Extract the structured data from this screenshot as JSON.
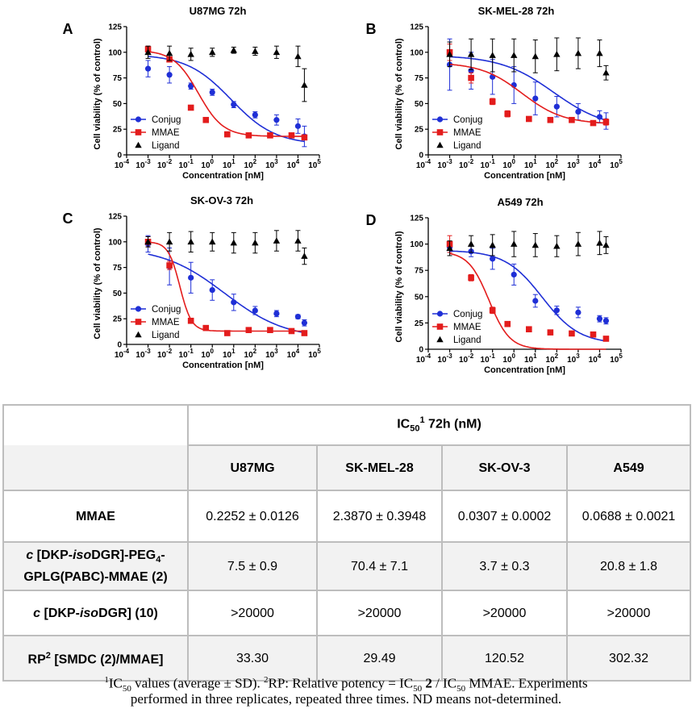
{
  "chart_data": [
    {
      "type": "scatter",
      "panel": "A",
      "title": "U87MG 72h",
      "xlabel": "Concentration [nM]",
      "ylabel": "Cell viability (% of control)",
      "xscale": "log10",
      "xlim": [
        -4,
        5
      ],
      "ylim": [
        0,
        125
      ],
      "xticks": [
        "10",
        "-4",
        "10",
        "-3",
        "10",
        "-2",
        "10",
        "-1",
        "10",
        "0",
        "10",
        "1",
        "10",
        "2",
        "10",
        "3",
        "10",
        "4",
        "10",
        "5"
      ],
      "yticks": [
        "0",
        "25",
        "50",
        "75",
        "100",
        "125"
      ],
      "legend": [
        "Conjug",
        "MMAE",
        "Ligand"
      ],
      "series": [
        {
          "name": "Conjug",
          "color": "#1f2fd6",
          "marker": "circle",
          "log_x": [
            -3,
            -2,
            -1,
            0,
            1,
            2,
            3,
            4,
            4.3
          ],
          "y": [
            84,
            78,
            67,
            61,
            49,
            39,
            34,
            28,
            18
          ],
          "err": [
            8,
            8,
            3,
            3,
            3,
            3,
            5,
            7,
            10
          ],
          "fit_ic50_log": 0.875,
          "fit_bottom": 10,
          "fit_top": 98,
          "fit_hill": 0.42
        },
        {
          "name": "MMAE",
          "color": "#e31c1c",
          "marker": "square",
          "log_x": [
            -3,
            -2,
            -1,
            -0.3,
            0.7,
            1.7,
            2.7,
            3.7,
            4.3
          ],
          "y": [
            103,
            93,
            46,
            34,
            20,
            19,
            19,
            19,
            17
          ],
          "err": [
            3,
            2,
            1,
            2,
            1,
            1,
            1,
            1,
            1
          ],
          "fit_ic50_log": -0.648,
          "fit_bottom": 18,
          "fit_top": 102,
          "fit_hill": 0.75
        },
        {
          "name": "Ligand",
          "color": "#000000",
          "marker": "triangle",
          "log_x": [
            -3,
            -2,
            -1,
            0,
            1,
            2,
            3,
            4,
            4.3
          ],
          "y": [
            100,
            99,
            98,
            100,
            102,
            101,
            100,
            96,
            68
          ],
          "err": [
            6,
            7,
            6,
            4,
            3,
            4,
            6,
            10,
            16
          ]
        }
      ]
    },
    {
      "type": "scatter",
      "panel": "B",
      "title": "SK-MEL-28 72h",
      "xlabel": "Concentration [nM]",
      "ylabel": "Cell viability (% of control)",
      "xscale": "log10",
      "xlim": [
        -4,
        5
      ],
      "ylim": [
        0,
        125
      ],
      "xticks": [
        "10",
        "-4",
        "10",
        "-3",
        "10",
        "-2",
        "10",
        "-1",
        "10",
        "0",
        "10",
        "1",
        "10",
        "2",
        "10",
        "3",
        "10",
        "4",
        "10",
        "5"
      ],
      "yticks": [
        "0",
        "25",
        "50",
        "75",
        "100",
        "125"
      ],
      "legend": [
        "Conjug",
        "MMAE",
        "Ligand"
      ],
      "series": [
        {
          "name": "Conjug",
          "color": "#1f2fd6",
          "marker": "circle",
          "log_x": [
            -3,
            -2,
            -1,
            0,
            1,
            2,
            3,
            4,
            4.3
          ],
          "y": [
            88,
            82,
            76,
            68,
            55,
            47,
            42,
            37,
            33
          ],
          "err": [
            25,
            18,
            17,
            18,
            16,
            10,
            8,
            6,
            8
          ],
          "fit_ic50_log": 1.85,
          "fit_bottom": 25,
          "fit_top": 97,
          "fit_hill": 0.35
        },
        {
          "name": "MMAE",
          "color": "#e31c1c",
          "marker": "square",
          "log_x": [
            -3,
            -2,
            -1,
            -0.3,
            0.7,
            1.7,
            2.7,
            3.7,
            4.3
          ],
          "y": [
            100,
            75,
            52,
            40,
            35,
            34,
            34,
            31,
            32
          ],
          "err": [
            8,
            5,
            3,
            3,
            2,
            2,
            2,
            2,
            3
          ],
          "fit_ic50_log": 0.378,
          "fit_bottom": 30,
          "fit_top": 90,
          "fit_hill": 0.45
        },
        {
          "name": "Ligand",
          "color": "#000000",
          "marker": "triangle",
          "log_x": [
            -3,
            -2,
            -1,
            0,
            1,
            2,
            3,
            4,
            4.3
          ],
          "y": [
            98,
            98,
            97,
            97,
            96,
            98,
            99,
            99,
            80
          ],
          "err": [
            12,
            15,
            16,
            16,
            16,
            16,
            15,
            13,
            7
          ]
        }
      ]
    },
    {
      "type": "scatter",
      "panel": "C",
      "title": "SK-OV-3 72h",
      "xlabel": "Concentration [nM]",
      "ylabel": "Cell viability (% of control)",
      "xscale": "log10",
      "xlim": [
        -4,
        5
      ],
      "ylim": [
        0,
        125
      ],
      "xticks": [
        "10",
        "-4",
        "10",
        "-3",
        "10",
        "-2",
        "10",
        "-1",
        "10",
        "0",
        "10",
        "1",
        "10",
        "2",
        "10",
        "3",
        "10",
        "4",
        "10",
        "5"
      ],
      "yticks": [
        "0",
        "25",
        "50",
        "75",
        "100",
        "125"
      ],
      "legend": [
        "Conjug",
        "MMAE",
        "Ligand"
      ],
      "series": [
        {
          "name": "Conjug",
          "color": "#1f2fd6",
          "marker": "circle",
          "log_x": [
            -3,
            -2,
            -1,
            0,
            1,
            2,
            3,
            4,
            4.3
          ],
          "y": [
            98,
            76,
            65,
            53,
            41,
            33,
            30,
            27,
            21
          ],
          "err": [
            8,
            18,
            15,
            10,
            8,
            4,
            3,
            2,
            3
          ],
          "fit_ic50_log": 0.568,
          "fit_bottom": 5,
          "fit_top": 95,
          "fit_hill": 0.3
        },
        {
          "name": "MMAE",
          "color": "#e31c1c",
          "marker": "square",
          "log_x": [
            -3,
            -2,
            -1,
            -0.3,
            0.7,
            1.7,
            2.7,
            3.7,
            4.3
          ],
          "y": [
            100,
            77,
            23,
            16,
            11,
            14,
            14,
            13,
            11
          ],
          "err": [
            5,
            4,
            1,
            1,
            1,
            1,
            1,
            1,
            1
          ],
          "fit_ic50_log": -1.513,
          "fit_bottom": 13,
          "fit_top": 100,
          "fit_hill": 1.6
        },
        {
          "name": "Ligand",
          "color": "#000000",
          "marker": "triangle",
          "log_x": [
            -3,
            -2,
            -1,
            0,
            1,
            2,
            3,
            4,
            4.3
          ],
          "y": [
            100,
            100,
            100,
            100,
            99,
            99,
            101,
            101,
            86
          ],
          "err": [
            5,
            9,
            10,
            9,
            10,
            10,
            10,
            10,
            8
          ]
        }
      ]
    },
    {
      "type": "scatter",
      "panel": "D",
      "title": "A549 72h",
      "xlabel": "Concentration [nM]",
      "ylabel": "Cell viability (% of control)",
      "xscale": "log10",
      "xlim": [
        -4,
        5
      ],
      "ylim": [
        0,
        125
      ],
      "xticks": [
        "10",
        "-4",
        "10",
        "-3",
        "10",
        "-2",
        "10",
        "-1",
        "10",
        "0",
        "10",
        "1",
        "10",
        "2",
        "10",
        "3",
        "10",
        "4",
        "10",
        "5"
      ],
      "yticks": [
        "0",
        "25",
        "50",
        "75",
        "100",
        "125"
      ],
      "legend": [
        "Conjug",
        "MMAE",
        "Ligand"
      ],
      "series": [
        {
          "name": "Conjug",
          "color": "#1f2fd6",
          "marker": "circle",
          "log_x": [
            -3,
            -2,
            -1,
            0,
            1,
            2,
            3,
            4,
            4.3
          ],
          "y": [
            97,
            93,
            86,
            71,
            46,
            37,
            35,
            29,
            27
          ],
          "err": [
            5,
            5,
            10,
            10,
            6,
            4,
            5,
            3,
            3
          ],
          "fit_ic50_log": 1.318,
          "fit_bottom": 5,
          "fit_top": 94,
          "fit_hill": 0.5
        },
        {
          "name": "MMAE",
          "color": "#e31c1c",
          "marker": "square",
          "log_x": [
            -3,
            -2,
            -1,
            -0.3,
            0.7,
            1.7,
            2.7,
            3.7,
            4.3
          ],
          "y": [
            100,
            68,
            37,
            24,
            19,
            16,
            15,
            14,
            10
          ],
          "err": [
            8,
            3,
            3,
            2,
            1,
            1,
            1,
            1,
            1
          ],
          "fit_ic50_log": -1.162,
          "fit_bottom": 0,
          "fit_top": 93,
          "fit_hill": 0.9
        },
        {
          "name": "Ligand",
          "color": "#000000",
          "marker": "triangle",
          "log_x": [
            -3,
            -2,
            -1,
            0,
            1,
            2,
            3,
            4,
            4.3
          ],
          "y": [
            96,
            100,
            99,
            100,
            99,
            98,
            100,
            101,
            99
          ],
          "err": [
            7,
            8,
            10,
            12,
            11,
            10,
            11,
            11,
            8
          ]
        }
      ]
    }
  ],
  "table": {
    "title": "IC",
    "title_sub": "50",
    "title_sup": "1",
    "title_rest": " 72h (nM)",
    "columns": [
      "U87MG",
      "SK-MEL-28",
      "SK-OV-3",
      "A549"
    ],
    "rows": [
      {
        "label": "MMAE",
        "values": [
          "0.2252 ± 0.0126",
          "2.3870 ± 0.3948",
          "0.0307 ± 0.0002",
          "0.0688 ± 0.0021"
        ]
      },
      {
        "label_l1_a": "c",
        "label_l1_b": " [DKP-",
        "label_l1_c": "iso",
        "label_l1_d": "DGR]-PEG",
        "label_l1_sub": "4",
        "label_l1_e": "-",
        "label_l2": "GPLG(PABC)-MMAE (2)",
        "values": [
          "7.5 ± 0.9",
          "70.4 ± 7.1",
          "3.7 ± 0.3",
          "20.8 ± 1.8"
        ]
      },
      {
        "label_a": "c",
        "label_b": " [DKP-",
        "label_c": "iso",
        "label_d": "DGR] (10)",
        "values": [
          ">20000",
          ">20000",
          ">20000",
          ">20000"
        ]
      },
      {
        "label_a": "RP",
        "label_sup": "2",
        "label_b": " [SMDC (2)/MMAE]",
        "values": [
          "33.30",
          "29.49",
          "120.52",
          "302.32"
        ]
      }
    ]
  },
  "footnote": {
    "sup1": "1",
    "a": "IC",
    "sub1": "50",
    "b": " values (average ± SD). ",
    "sup2": "2",
    "c": "RP: Relative potency = IC",
    "sub2": "50",
    "d": " ",
    "bold": "2",
    "e": " / IC",
    "sub3": "50",
    "f": " MMAE. Experiments",
    "line2": "performed in three replicates, repeated three times. ND means not-determined."
  }
}
